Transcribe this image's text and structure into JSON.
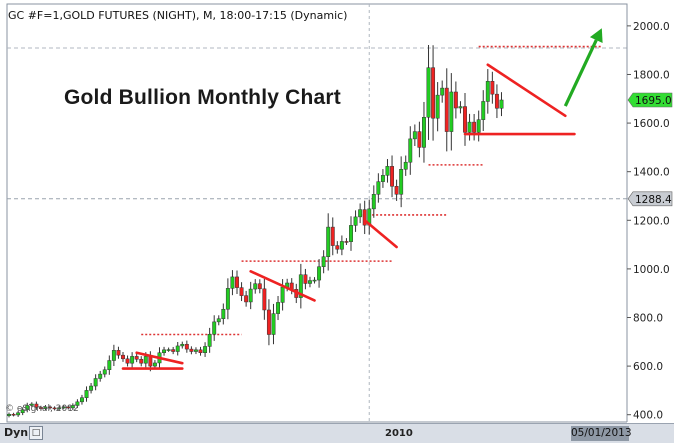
{
  "header": {
    "symbol_line": "GC #F=1,GOLD FUTURES (NIGHT), M, 18:00-17:15 (Dynamic)"
  },
  "title": "Gold Bullion Monthly Chart",
  "attribution": "© eSignal, 2012",
  "bottom_bar": {
    "dyn_label": "Dyn",
    "date": "05/01/2013",
    "x_tick": "2010"
  },
  "colors": {
    "up": "#22cc22",
    "down": "#ee2222",
    "trendline": "#ee2222",
    "resistance_dotted": "#dd3333",
    "arrow": "#22aa22",
    "last_price_bg": "#33dd33",
    "ref_price_bg": "#c8ccd2"
  },
  "price_labels": {
    "last_price": "1695.0",
    "ref_price": "1288.4"
  },
  "chart_data": {
    "type": "candlestick",
    "title": "Gold Bullion Monthly Chart",
    "ylim": [
      370,
      2090
    ],
    "y_ticks": [
      400,
      600,
      800,
      1000,
      1200,
      1400,
      1600,
      1800,
      2000
    ],
    "y_tick_labels": [
      "400.0",
      "600.0",
      "800.0",
      "1000.0",
      "1200.0",
      "1400.0",
      "1600.0",
      "1800.0",
      "2000.0"
    ],
    "x_tick_labels": [
      "2010"
    ],
    "x_tick_period_index": 79,
    "last_price": 1695.0,
    "ref_price": 1288.4,
    "closes": [
      402,
      399,
      408,
      421,
      438,
      444,
      430,
      425,
      432,
      428,
      424,
      429,
      432,
      428,
      438,
      453,
      470,
      500,
      518,
      549,
      567,
      585,
      623,
      665,
      645,
      630,
      612,
      640,
      628,
      612,
      640,
      600,
      613,
      655,
      667,
      668,
      660,
      683,
      690,
      670,
      660,
      667,
      655,
      681,
      731,
      782,
      795,
      834,
      920,
      967,
      923,
      890,
      864,
      917,
      939,
      918,
      831,
      730,
      816,
      862,
      925,
      942,
      916,
      882,
      976,
      940,
      952,
      954,
      1009,
      1050,
      1172,
      1096,
      1081,
      1113,
      1112,
      1179,
      1214,
      1244,
      1180,
      1247,
      1307,
      1359,
      1385,
      1422,
      1340,
      1307,
      1410,
      1439,
      1535,
      1565,
      1500,
      1624,
      1828,
      1620,
      1715,
      1744,
      1565,
      1728,
      1662,
      1668,
      1562,
      1604,
      1562,
      1614,
      1689,
      1772,
      1719,
      1661,
      1695
    ],
    "resistance_levels": [
      {
        "price": 730,
        "from_index": 29,
        "to_index": 51
      },
      {
        "price": 1032,
        "from_index": 51,
        "to_index": 84
      },
      {
        "price": 1222,
        "from_index": 77,
        "to_index": 96
      },
      {
        "price": 1428,
        "from_index": 92,
        "to_index": 104
      },
      {
        "price": 1915,
        "from_index": 103,
        "to_index": 130
      }
    ],
    "trendlines": [
      {
        "from": [
          28,
          655
        ],
        "to": [
          38,
          612
        ],
        "kind": "falling"
      },
      {
        "from": [
          25,
          590
        ],
        "to": [
          38,
          590
        ],
        "kind": "support"
      },
      {
        "from": [
          53,
          990
        ],
        "to": [
          67,
          870
        ],
        "kind": "falling"
      },
      {
        "from": [
          78,
          1200
        ],
        "to": [
          85,
          1090
        ],
        "kind": "falling"
      },
      {
        "from": [
          105,
          1840
        ],
        "to": [
          122,
          1630
        ],
        "kind": "falling"
      },
      {
        "from": [
          100,
          1555
        ],
        "to": [
          124,
          1555
        ],
        "kind": "support"
      }
    ],
    "arrow": {
      "from": [
        122,
        1670
      ],
      "to": [
        130,
        1990
      ]
    }
  }
}
